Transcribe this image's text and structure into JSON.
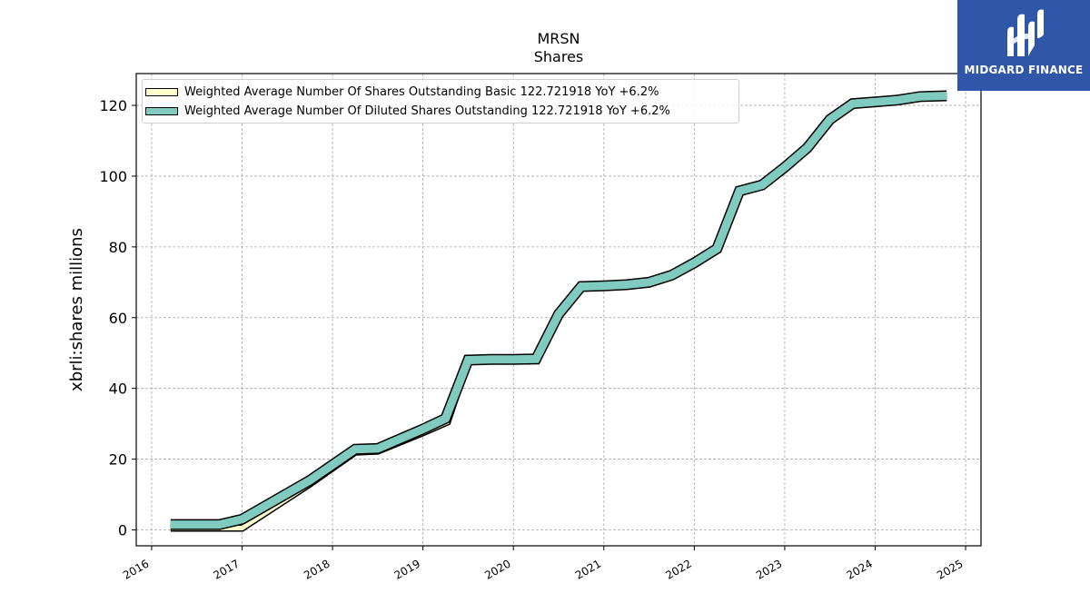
{
  "header": {
    "ticker": "MRSN",
    "subtitle": "Shares"
  },
  "logo": {
    "name": "MIDGARD FINANCE",
    "background": "#2f56a8"
  },
  "legend": [
    {
      "label": "Weighted Average Number Of Shares Outstanding Basic  122.721918 YoY +6.2%",
      "color": "#ffffcc"
    },
    {
      "label": "Weighted Average Number Of Diluted Shares Outstanding  122.721918 YoY +6.2%",
      "color": "#80cbbf"
    }
  ],
  "chart_data": {
    "type": "line",
    "title": "MRSN",
    "subtitle": "Shares",
    "xlabel": "",
    "ylabel": "xbrli:shares millions",
    "xlim": [
      2015.83,
      2025.17
    ],
    "ylim": [
      -4.5,
      129
    ],
    "xticks": [
      2016,
      2017,
      2018,
      2019,
      2020,
      2021,
      2022,
      2023,
      2024,
      2025
    ],
    "yticks": [
      0,
      20,
      40,
      60,
      80,
      100,
      120
    ],
    "grid": true,
    "legend_position": "top-left",
    "series": [
      {
        "name": "Weighted Average Number Of Shares Outstanding Basic",
        "color": "#ffffcc",
        "x": [
          2016.21,
          2016.75,
          2017.0,
          2017.75,
          2018.25,
          2018.5,
          2019.0,
          2019.27,
          2019.5,
          2019.75,
          2020.0,
          2020.25,
          2020.5,
          2020.75,
          2021.0,
          2021.25,
          2021.5,
          2021.75,
          2022.0,
          2022.25,
          2022.5,
          2022.75,
          2023.0,
          2023.25,
          2023.5,
          2023.75,
          2024.0,
          2024.25,
          2024.5,
          2024.79
        ],
        "y": [
          0.5,
          0.5,
          0.5,
          13.0,
          22.0,
          22.3,
          27.5,
          30.5,
          48.0,
          48.2,
          48.2,
          48.3,
          61.0,
          68.8,
          69.2,
          69.6,
          70.0,
          72.0,
          75.5,
          79.5,
          95.8,
          97.5,
          102.5,
          108.0,
          116.0,
          120.5,
          121.0,
          121.5,
          122.5,
          122.72
        ]
      },
      {
        "name": "Weighted Average Number Of Diluted Shares Outstanding",
        "color": "#80cbbf",
        "x": [
          2016.21,
          2016.75,
          2017.0,
          2017.75,
          2018.25,
          2018.5,
          2019.0,
          2019.25,
          2019.5,
          2019.75,
          2020.0,
          2020.25,
          2020.5,
          2020.75,
          2021.0,
          2021.25,
          2021.5,
          2021.75,
          2022.0,
          2022.25,
          2022.5,
          2022.75,
          2023.0,
          2023.25,
          2023.5,
          2023.75,
          2024.0,
          2024.25,
          2024.5,
          2024.79
        ],
        "y": [
          1.5,
          1.5,
          3.0,
          14.0,
          22.8,
          23.0,
          28.5,
          31.5,
          48.0,
          48.2,
          48.2,
          48.3,
          61.0,
          68.8,
          69.0,
          69.3,
          70.0,
          72.0,
          75.5,
          79.5,
          95.8,
          97.5,
          102.5,
          108.0,
          116.0,
          120.5,
          121.0,
          121.5,
          122.5,
          122.72
        ]
      }
    ]
  }
}
